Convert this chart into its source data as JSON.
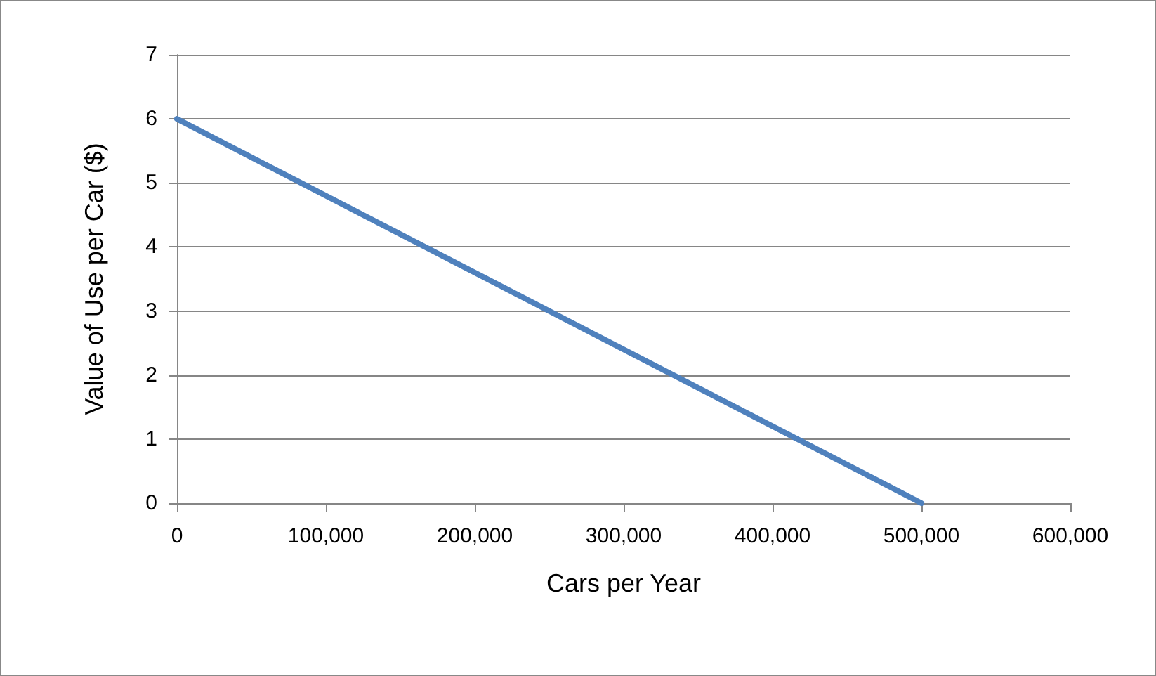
{
  "chart_data": {
    "type": "line",
    "xlabel": "Cars per Year",
    "ylabel": "Value of Use per Car ($)",
    "x": [
      0,
      500000
    ],
    "series": [
      {
        "color": "#4f81bd",
        "values": [
          6,
          0
        ]
      }
    ],
    "xlim": [
      0,
      600000
    ],
    "xticks": [
      {
        "value": 0,
        "label": "0"
      },
      {
        "value": 100000,
        "label": "100,000"
      },
      {
        "value": 200000,
        "label": "200,000"
      },
      {
        "value": 300000,
        "label": "300,000"
      },
      {
        "value": 400000,
        "label": "400,000"
      },
      {
        "value": 500000,
        "label": "500,000"
      },
      {
        "value": 600000,
        "label": "600,000"
      }
    ],
    "ylim": [
      0,
      7
    ],
    "yticks": [
      0,
      1,
      2,
      3,
      4,
      5,
      6,
      7
    ],
    "grid": "y",
    "marker": "none",
    "line_style": "solid"
  }
}
